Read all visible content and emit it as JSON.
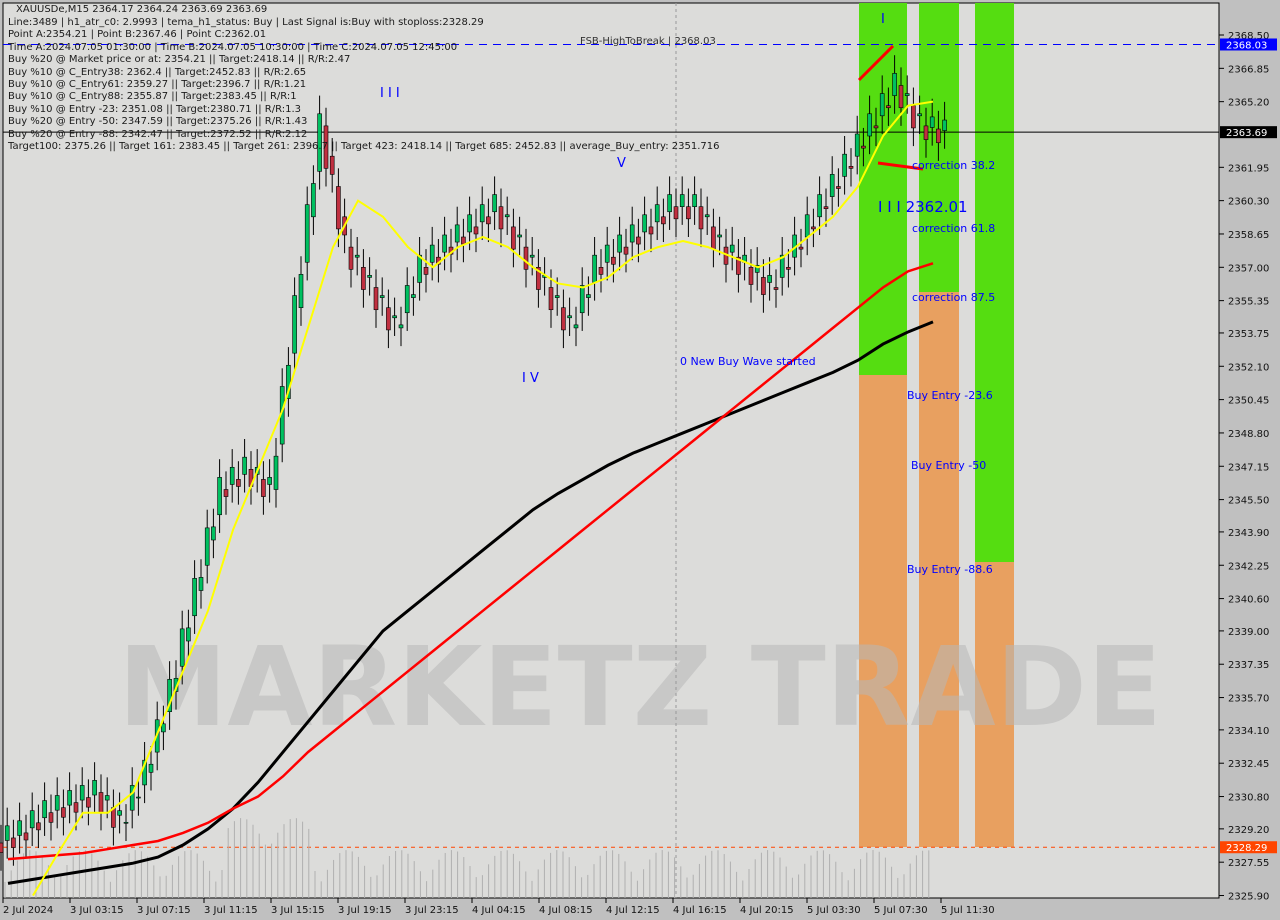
{
  "header": {
    "symbol_line": "XAUUSDe,M15  2364.17 2364.24 2363.69 2363.69",
    "lines": [
      "Line:3489 | h1_atr_c0: 2.9993 | tema_h1_status: Buy | Last Signal is:Buy with stoploss:2328.29",
      "Point A:2354.21 | Point B:2367.46 | Point C:2362.01",
      "Time A:2024.07.05 01:30:00 | Time B:2024.07.05 10:30:00 | Time C:2024.07.05 12:45:00",
      "Buy %20 @ Market price or at: 2354.21 || Target:2418.14 || R/R:2.47",
      "Buy %10 @ C_Entry38: 2362.4 || Target:2452.83 || R/R:2.65",
      "Buy %10 @ C_Entry61: 2359.27 || Target:2396.7 || R/R:1.21",
      "Buy %10 @ C_Entry88: 2355.87 || Target:2383.45 || R/R:1",
      "Buy %10 @ Entry -23: 2351.08 || Target:2380.71 || R/R:1.3",
      "Buy %20 @ Entry -50: 2347.59 || Target:2375.26 || R/R:1.43",
      "Buy %20 @ Entry -88: 2342.47 || Target:2372.52 || R/R:2.12",
      "Target100: 2375.26 || Target 161: 2383.45 || Target 261: 2396.7 || Target 423: 2418.14 || Target 685: 2452.83 || average_Buy_entry: 2351.716"
    ],
    "fsb_label": "FSB-HighToBreak | 2368.03"
  },
  "labels": {
    "correction_38": "correction 38.2",
    "point_c": "I I I 2362.01",
    "correction_61": "correction 61.8",
    "correction_87": "correction 87.5",
    "buy_entry_23": "Buy Entry -23.6",
    "buy_entry_50": "Buy Entry -50",
    "buy_entry_88": "Buy Entry -88.6",
    "new_wave": "0 New Buy Wave started",
    "wave_marks": [
      "I I I",
      "V",
      "I V",
      "I"
    ]
  },
  "watermark": "MARKETZ TRADE",
  "colors": {
    "bull": "#00c060",
    "bear": "#c03040",
    "ma_fast": "#ffff00",
    "ma_red": "#ff0000",
    "ma_black": "#000000",
    "zone_green": "#55dd11",
    "zone_orange": "#e8a060",
    "price_tag": "#000000",
    "high_tag": "#0000ff",
    "stop_tag": "#ff4500"
  },
  "chart_data": {
    "type": "candlestick",
    "symbol": "XAUUSDe",
    "timeframe": "M15",
    "ylim": [
      2325.9,
      2368.5
    ],
    "y_ticks": [
      "2368.50",
      "2366.85",
      "2365.20",
      "2361.95",
      "2360.30",
      "2358.65",
      "2357.00",
      "2355.35",
      "2353.75",
      "2352.10",
      "2350.45",
      "2348.80",
      "2347.15",
      "2345.50",
      "2343.90",
      "2342.25",
      "2340.60",
      "2339.00",
      "2337.35",
      "2335.70",
      "2334.10",
      "2332.45",
      "2330.80",
      "2329.20",
      "2327.55",
      "2325.90"
    ],
    "x_ticks": [
      "2 Jul 2024",
      "3 Jul 03:15",
      "3 Jul 07:15",
      "3 Jul 11:15",
      "3 Jul 15:15",
      "3 Jul 19:15",
      "3 Jul 23:15",
      "4 Jul 04:15",
      "4 Jul 08:15",
      "4 Jul 12:15",
      "4 Jul 16:15",
      "4 Jul 20:15",
      "5 Jul 03:30",
      "5 Jul 07:30",
      "5 Jul 11:30"
    ],
    "current_price": "2363.69",
    "high_line": "2368.03",
    "stoploss_line": "2328.29",
    "closes": [
      2329,
      2330,
      2330.5,
      2331,
      2329.5,
      2332,
      2336,
      2341,
      2346,
      2347,
      2346,
      2355,
      2364,
      2358,
      2356,
      2354,
      2357,
      2358,
      2359,
      2360,
      2358,
      2356,
      2354,
      2357,
      2358,
      2359,
      2360,
      2360,
      2358,
      2357,
      2356,
      2358,
      2360,
      2362,
      2364,
      2366,
      2364,
      2363.69
    ],
    "ma_yellow": [
      null,
      2325.9,
      2328,
      2330,
      2330,
      2331,
      2334,
      2337,
      2340,
      2344,
      2347,
      2350,
      2354,
      2358,
      2360.3,
      2359.5,
      2358,
      2357,
      2358,
      2358.5,
      2358,
      2357,
      2356.2,
      2356,
      2356.5,
      2357.5,
      2358,
      2358.3,
      2358,
      2357.5,
      2357,
      2357.5,
      2358.5,
      2359.5,
      2361,
      2363.5,
      2365,
      2365.2
    ],
    "ma_red": [
      2327.7,
      2327.8,
      2327.9,
      2328,
      2328.2,
      2328.4,
      2328.6,
      2329,
      2329.5,
      2330.2,
      2330.8,
      2331.8,
      2333,
      2334,
      2335,
      2336,
      2337,
      2338,
      2339,
      2340,
      2341,
      2342,
      2343,
      2344,
      2345,
      2346,
      2347,
      2348,
      2349,
      2350,
      2351,
      2352,
      2353,
      2354,
      2355,
      2356,
      2356.8,
      2357.2
    ],
    "ma_black": [
      2326.5,
      2326.7,
      2326.9,
      2327.1,
      2327.3,
      2327.5,
      2327.8,
      2328.4,
      2329.2,
      2330.2,
      2331.5,
      2333,
      2334.5,
      2336,
      2337.5,
      2339,
      2340,
      2341,
      2342,
      2343,
      2344,
      2345,
      2345.8,
      2346.5,
      2347.2,
      2347.8,
      2348.3,
      2348.8,
      2349.3,
      2349.8,
      2350.3,
      2350.8,
      2351.3,
      2351.8,
      2352.4,
      2353.2,
      2353.8,
      2354.3
    ]
  }
}
